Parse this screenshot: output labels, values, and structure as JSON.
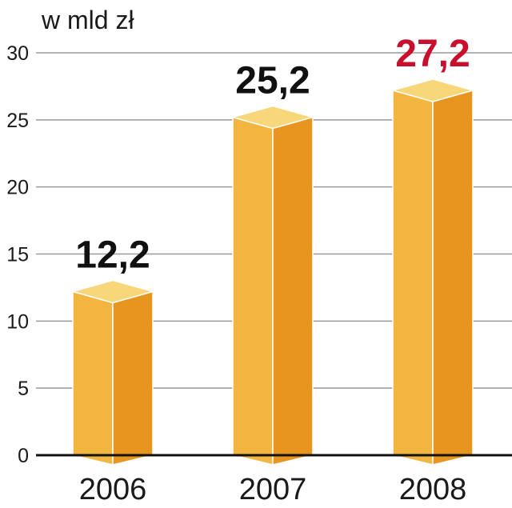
{
  "chart_data": {
    "type": "bar",
    "title": "",
    "unit_label": "w mld zł",
    "categories": [
      "2006",
      "2007",
      "2008"
    ],
    "values": [
      12.2,
      25.2,
      27.2
    ],
    "value_labels": [
      "12,2",
      "25,2",
      "27,2"
    ],
    "ylim": [
      0,
      30
    ],
    "yticks": [
      "0",
      "5",
      "10",
      "15",
      "20",
      "25",
      "30"
    ],
    "grid": true,
    "colors": {
      "bar_front": "#F2B640",
      "bar_side": "#E8951F",
      "bar_top": "#F8D77A",
      "label_default": "#111111",
      "label_highlight": "#C8102E",
      "grid": "#9a9a9a",
      "baseline": "#111111"
    },
    "highlight_index": 2
  }
}
